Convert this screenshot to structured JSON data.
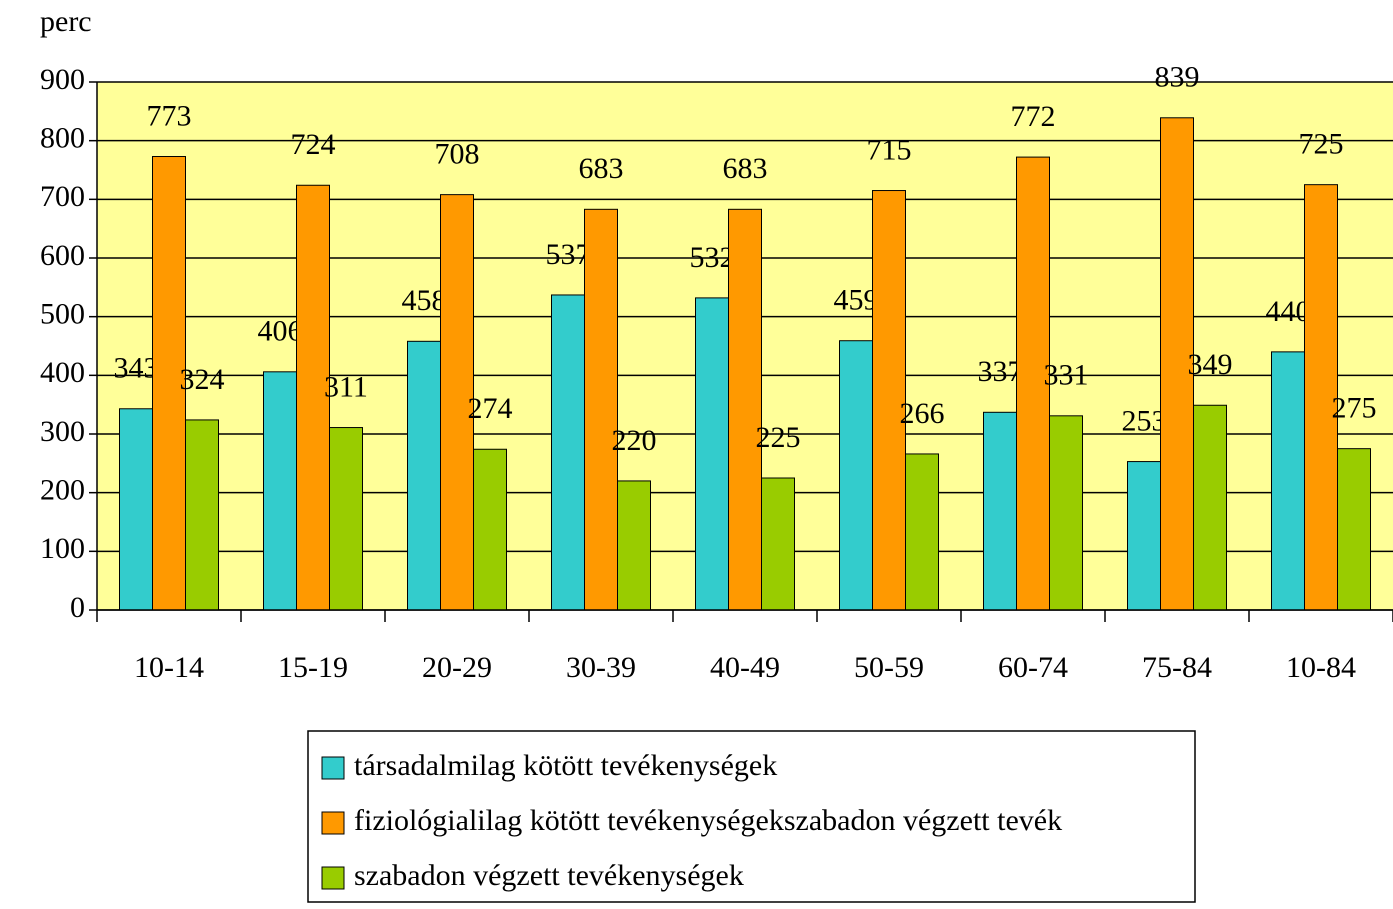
{
  "chart_data": {
    "type": "bar",
    "y_label": "perc",
    "categories": [
      "10-14",
      "15-19",
      "20-29",
      "30-39",
      "40-49",
      "50-59",
      "60-74",
      "75-84",
      "10-84"
    ],
    "series": [
      {
        "name": "társadalmilag kötött tevékenységek",
        "color": "#33cccc",
        "values": [
          343,
          406,
          458,
          537,
          532,
          459,
          337,
          253,
          440
        ]
      },
      {
        "name": "fiziológialilag kötött tevékenységekszabadon végzett tevék",
        "color": "#ff9900",
        "values": [
          773,
          724,
          708,
          683,
          683,
          715,
          772,
          839,
          725
        ]
      },
      {
        "name": "szabadon végzett tevékenységek",
        "color": "#99cc00",
        "values": [
          324,
          311,
          274,
          220,
          225,
          266,
          331,
          349,
          275
        ]
      }
    ],
    "ylim": [
      0,
      900
    ],
    "yticks": [
      0,
      100,
      200,
      300,
      400,
      500,
      600,
      700,
      800,
      900
    ],
    "grid": true,
    "plot_background": "#ffff99"
  }
}
